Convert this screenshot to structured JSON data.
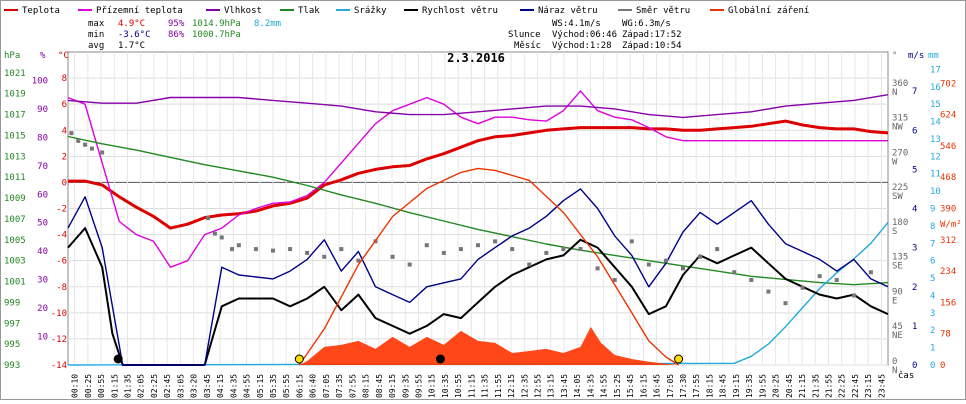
{
  "legend": [
    {
      "label": "Teplota",
      "color": "#dd0000"
    },
    {
      "label": "Přízemní teplota",
      "color": "#dd00dd"
    },
    {
      "label": "Vlhkost",
      "color": "#8800aa"
    },
    {
      "label": "Tlak",
      "color": "#228822"
    },
    {
      "label": "Srážky",
      "color": "#22aadd"
    },
    {
      "label": "Rychlost větru",
      "color": "#000000"
    },
    {
      "label": "Náraz větru",
      "color": "#000088"
    },
    {
      "label": "Směr větru",
      "color": "#777777"
    },
    {
      "label": "Globální záření",
      "color": "#ee3300"
    }
  ],
  "stats": {
    "max": {
      "label": "max",
      "temp": "4.9°C",
      "hum": "95%",
      "press": "1014.9hPa",
      "rain": "8.2mm"
    },
    "min": {
      "label": "min",
      "temp": "-3.6°C",
      "hum": "86%",
      "press": "1000.7hPa"
    },
    "avg": {
      "label": "avg",
      "temp": "1.7°C"
    }
  },
  "wind_info": {
    "ws": "WS:4.1m/s",
    "wg": "WG:6.3m/s"
  },
  "sun": {
    "label": "Slunce",
    "rise": "Východ:06:46",
    "set": "Západ:17:52"
  },
  "moon": {
    "label": "Měsíc",
    "rise": "Východ:1:28",
    "set": "Západ:10:54"
  },
  "chart_data": {
    "type": "line",
    "title": "2.3.2016",
    "xlabel": "čas",
    "x_ticks": [
      "00:10",
      "00:25",
      "00:55",
      "01:15",
      "01:35",
      "02:05",
      "02:25",
      "02:45",
      "03:05",
      "03:20",
      "03:45",
      "04:15",
      "04:35",
      "04:55",
      "05:15",
      "05:35",
      "05:55",
      "06:15",
      "06:40",
      "07:05",
      "07:35",
      "07:55",
      "08:15",
      "08:45",
      "09:15",
      "09:35",
      "09:55",
      "10:15",
      "10:35",
      "10:55",
      "11:15",
      "11:35",
      "11:55",
      "12:15",
      "12:35",
      "12:55",
      "13:15",
      "13:45",
      "14:05",
      "14:35",
      "14:55",
      "15:25",
      "15:45",
      "16:15",
      "16:45",
      "17:05",
      "17:30",
      "17:55",
      "18:15",
      "18:45",
      "19:15",
      "19:35",
      "19:55",
      "20:25",
      "20:45",
      "21:15",
      "21:35",
      "21:55",
      "22:25",
      "22:45",
      "23:15",
      "23:45"
    ],
    "axes": {
      "hpa": {
        "label": "hPa",
        "ticks": [
          993,
          995,
          997,
          999,
          1001,
          1003,
          1005,
          1007,
          1009,
          1011,
          1013,
          1015,
          1017,
          1019,
          1021
        ]
      },
      "percent": {
        "label": "%",
        "ticks": [
          10,
          20,
          30,
          40,
          50,
          60,
          70,
          80,
          90,
          100
        ]
      },
      "celsius": {
        "label": "°C",
        "ticks": [
          -14,
          -12,
          -10,
          -8,
          -6,
          -4,
          -2,
          0,
          2,
          4,
          6,
          8
        ]
      },
      "degrees": {
        "label": "°",
        "ticks": [
          "0",
          "45",
          "90",
          "135",
          "180",
          "225",
          "270",
          "315",
          "360"
        ],
        "compass": [
          "N",
          "NE",
          "E",
          "SE",
          "S",
          "SW",
          "W",
          "NW",
          "N"
        ]
      },
      "ms": {
        "label": "m/s",
        "ticks": [
          "0",
          "1",
          "2",
          "3",
          "4",
          "5",
          "6",
          "7"
        ]
      },
      "mm": {
        "label": "mm",
        "ticks": [
          "0",
          "1",
          "2",
          "3",
          "4",
          "5",
          "6",
          "7",
          "8",
          "9",
          "10",
          "11",
          "12",
          "13",
          "14",
          "15",
          "16",
          "17"
        ]
      },
      "wm2": {
        "label": "W/m²",
        "ticks": [
          "0",
          "78",
          "156",
          "234",
          "312",
          "390",
          "468",
          "546",
          "624",
          "702"
        ]
      }
    },
    "series": [
      {
        "name": "Teplota",
        "unit": "°C",
        "x": [
          0,
          0.5,
          1,
          1.5,
          2,
          2.5,
          3,
          3.5,
          4,
          4.5,
          5,
          5.5,
          6,
          6.5,
          7,
          7.5,
          8,
          8.5,
          9,
          9.5,
          10,
          10.5,
          11,
          11.5,
          12,
          12.5,
          13,
          13.5,
          14,
          14.5,
          15,
          15.5,
          16,
          16.5,
          17,
          17.5,
          18,
          18.5,
          19,
          19.5,
          20,
          20.5,
          21,
          21.5,
          22,
          22.5,
          23,
          23.5,
          24
        ],
        "y": [
          0.1,
          0.1,
          -0.2,
          -1.1,
          -1.9,
          -2.6,
          -3.5,
          -3.2,
          -2.7,
          -2.5,
          -2.4,
          -2.2,
          -1.8,
          -1.6,
          -1.2,
          -0.2,
          0.2,
          0.7,
          1.0,
          1.2,
          1.3,
          1.8,
          2.2,
          2.7,
          3.2,
          3.5,
          3.6,
          3.8,
          4.0,
          4.1,
          4.2,
          4.2,
          4.2,
          4.2,
          4.1,
          4.1,
          4.0,
          4.0,
          4.1,
          4.2,
          4.3,
          4.5,
          4.7,
          4.4,
          4.2,
          4.1,
          4.1,
          3.9,
          3.8
        ]
      },
      {
        "name": "Přízemní teplota",
        "unit": "°C",
        "x": [
          0,
          0.5,
          1,
          1.5,
          2,
          2.5,
          3,
          3.5,
          4,
          4.5,
          5,
          5.5,
          6,
          6.5,
          7,
          7.5,
          8,
          8.5,
          9,
          9.5,
          10,
          10.5,
          11,
          11.5,
          12,
          12.5,
          13,
          13.5,
          14,
          14.5,
          15,
          15.5,
          16,
          16.5,
          17,
          17.5,
          18,
          18.5,
          19,
          19.5,
          20,
          20.5,
          21,
          21.5,
          22,
          22.5,
          23,
          23.5,
          24
        ],
        "y": [
          6.5,
          6.0,
          1.5,
          -3.0,
          -4.0,
          -4.5,
          -6.5,
          -6.0,
          -4.0,
          -3.5,
          -2.5,
          -2.0,
          -1.6,
          -1.5,
          -1.0,
          0.0,
          1.5,
          3.0,
          4.5,
          5.5,
          6.0,
          6.5,
          6.0,
          5.0,
          4.5,
          5.0,
          5.0,
          4.8,
          4.7,
          5.5,
          7.0,
          5.5,
          5.0,
          4.8,
          4.2,
          3.5,
          3.2,
          3.2,
          3.2,
          3.2,
          3.2,
          3.2,
          3.2,
          3.2,
          3.2,
          3.2,
          3.2,
          3.2,
          3.2
        ]
      },
      {
        "name": "Vlhkost",
        "unit": "%",
        "x": [
          0,
          1,
          2,
          3,
          4,
          5,
          6,
          7,
          8,
          9,
          10,
          11,
          12,
          13,
          14,
          15,
          16,
          17,
          18,
          19,
          20,
          21,
          22,
          23,
          24
        ],
        "y": [
          93,
          92,
          92,
          94,
          94,
          94,
          93,
          92,
          91,
          89,
          88,
          88,
          89,
          90,
          91,
          91,
          90,
          88,
          87,
          88,
          89,
          91,
          92,
          93,
          95
        ]
      },
      {
        "name": "Tlak",
        "unit": "hPa",
        "x": [
          0,
          1,
          2,
          3,
          4,
          5,
          6,
          7,
          8,
          9,
          10,
          11,
          12,
          13,
          14,
          15,
          16,
          17,
          18,
          19,
          20,
          21,
          22,
          23,
          24
        ],
        "y": [
          1014.9,
          1014.2,
          1013.6,
          1012.9,
          1012.2,
          1011.6,
          1011.0,
          1010.2,
          1009.3,
          1008.5,
          1007.6,
          1006.8,
          1006.0,
          1005.3,
          1004.6,
          1004.0,
          1003.5,
          1003.0,
          1002.5,
          1002.0,
          1001.5,
          1001.2,
          1000.9,
          1000.7,
          1000.9
        ]
      },
      {
        "name": "Srážky",
        "unit": "mm",
        "x": [
          0,
          19.5,
          20,
          20.5,
          21,
          21.5,
          22,
          22.5,
          23,
          23.5,
          24
        ],
        "y": [
          0,
          0.1,
          0.5,
          1.2,
          2.2,
          3.3,
          4.4,
          5.3,
          6.1,
          7.0,
          8.2
        ]
      },
      {
        "name": "Rychlost větru",
        "unit": "m/s",
        "x": [
          0,
          0.5,
          1,
          1.3,
          1.6,
          2,
          3,
          4,
          4.2,
          4.5,
          5,
          6,
          6.5,
          7,
          7.5,
          8,
          8.5,
          9,
          9.5,
          10,
          10.5,
          11,
          11.5,
          12,
          12.5,
          13,
          13.5,
          14,
          14.5,
          15,
          15.5,
          16,
          16.5,
          17,
          17.5,
          18,
          18.5,
          19,
          19.5,
          20,
          20.5,
          21,
          21.5,
          22,
          22.5,
          23,
          23.5,
          24
        ],
        "y": [
          3.0,
          3.5,
          2.5,
          0.8,
          0.0,
          0.0,
          0.0,
          0.0,
          0.6,
          1.5,
          1.7,
          1.7,
          1.5,
          1.7,
          2.0,
          1.4,
          1.8,
          1.2,
          1.0,
          0.8,
          1.0,
          1.3,
          1.2,
          1.6,
          2.0,
          2.3,
          2.5,
          2.7,
          2.8,
          3.2,
          3.0,
          2.5,
          2.0,
          1.3,
          1.5,
          2.3,
          2.8,
          2.6,
          2.8,
          3.0,
          2.6,
          2.2,
          2.0,
          1.8,
          1.7,
          1.8,
          1.5,
          1.3
        ]
      },
      {
        "name": "Náraz větru",
        "unit": "m/s",
        "x": [
          0,
          0.5,
          1,
          1.3,
          1.6,
          2,
          3,
          4,
          4.2,
          4.5,
          5,
          6,
          6.5,
          7,
          7.5,
          8,
          8.5,
          9,
          9.5,
          10,
          10.5,
          11,
          11.5,
          12,
          12.5,
          13,
          13.5,
          14,
          14.5,
          15,
          15.5,
          16,
          16.5,
          17,
          17.5,
          18,
          18.5,
          19,
          19.5,
          20,
          20.5,
          21,
          21.5,
          22,
          22.5,
          23,
          23.5,
          24
        ],
        "y": [
          3.5,
          4.3,
          3.0,
          1.5,
          0.0,
          0.0,
          0.0,
          0.0,
          1.0,
          2.5,
          2.3,
          2.2,
          2.4,
          2.7,
          3.2,
          2.4,
          2.9,
          2.0,
          1.8,
          1.6,
          2.0,
          2.1,
          2.2,
          2.7,
          3.0,
          3.3,
          3.5,
          3.8,
          4.2,
          4.5,
          4.0,
          3.3,
          2.8,
          2.0,
          2.6,
          3.4,
          3.9,
          3.6,
          3.9,
          4.2,
          3.6,
          3.1,
          2.9,
          2.7,
          2.4,
          2.7,
          2.2,
          2.0
        ]
      },
      {
        "name": "Směr větru",
        "unit": "°",
        "x": [
          0.1,
          0.3,
          0.5,
          0.7,
          1.0,
          4.1,
          4.3,
          4.5,
          4.8,
          5.0,
          5.5,
          6.0,
          6.5,
          7.0,
          7.5,
          8.0,
          8.5,
          9.0,
          9.5,
          10.0,
          10.5,
          11.0,
          11.5,
          12.0,
          12.5,
          13.0,
          13.5,
          14.0,
          14.5,
          15.0,
          15.5,
          16.0,
          16.5,
          17.0,
          17.5,
          18.0,
          18.5,
          19.0,
          19.5,
          20.0,
          20.5,
          21.0,
          21.5,
          22.0,
          22.5,
          23.0,
          23.5
        ],
        "y": [
          300,
          290,
          285,
          280,
          275,
          190,
          170,
          165,
          150,
          155,
          150,
          148,
          150,
          145,
          140,
          150,
          135,
          160,
          140,
          130,
          155,
          145,
          150,
          155,
          160,
          150,
          130,
          145,
          150,
          150,
          125,
          110,
          160,
          130,
          135,
          125,
          140,
          150,
          120,
          110,
          95,
          80,
          100,
          115,
          110,
          90,
          120
        ]
      },
      {
        "name": "Globální záření",
        "unit": "W/m²",
        "x": [
          6.77,
          7.5,
          8.5,
          9.5,
          10.5,
          11.5,
          12.0,
          12.5,
          13.5,
          14.5,
          15.5,
          16.5,
          17.0,
          17.5,
          17.87
        ],
        "y": [
          0,
          90,
          250,
          370,
          440,
          480,
          490,
          485,
          460,
          380,
          270,
          130,
          60,
          20,
          0
        ]
      },
      {
        "name": "Globální záření (measured)",
        "unit": "W/m²",
        "x": [
          6.77,
          7.0,
          7.5,
          8.0,
          8.5,
          9.0,
          9.5,
          10.0,
          10.5,
          11.0,
          11.5,
          12.0,
          12.5,
          13.0,
          13.5,
          14.0,
          14.5,
          15.0,
          15.3,
          15.6,
          16.0,
          16.5,
          17.0,
          17.5,
          17.87
        ],
        "y": [
          0,
          10,
          45,
          50,
          60,
          40,
          70,
          45,
          70,
          50,
          85,
          60,
          55,
          30,
          35,
          40,
          30,
          45,
          95,
          55,
          25,
          15,
          8,
          3,
          0
        ]
      }
    ]
  }
}
